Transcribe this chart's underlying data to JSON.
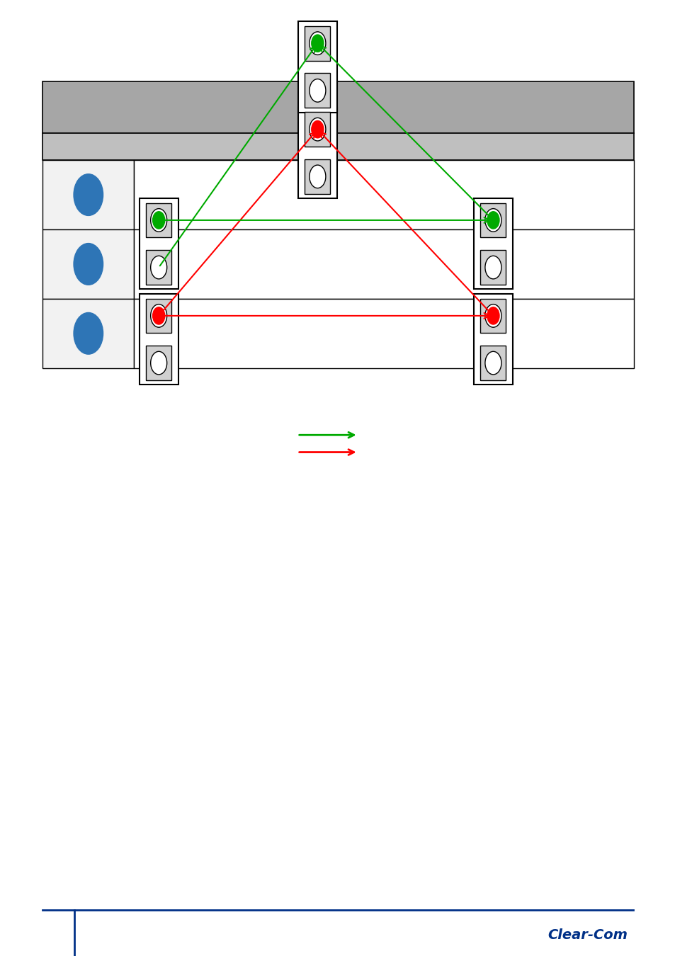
{
  "bg_color": "#ffffff",
  "table": {
    "header_row1_color": "#a6a6a6",
    "header_row2_color": "#bfbfbf",
    "cell_left_color": "#f2f2f2",
    "cell_right_color": "#ffffff",
    "border_color": "#000000",
    "rows": [
      {
        "left_circle_color": "#2e75b6"
      },
      {
        "left_circle_color": "#2e75b6"
      },
      {
        "left_circle_color": "#2e75b6"
      }
    ]
  },
  "diagram": {
    "red_color": "#ff0000",
    "green_color": "#00aa00"
  },
  "footer": {
    "line_color": "#003087",
    "logo_text": "Clear-Com",
    "logo_color": "#003087"
  }
}
